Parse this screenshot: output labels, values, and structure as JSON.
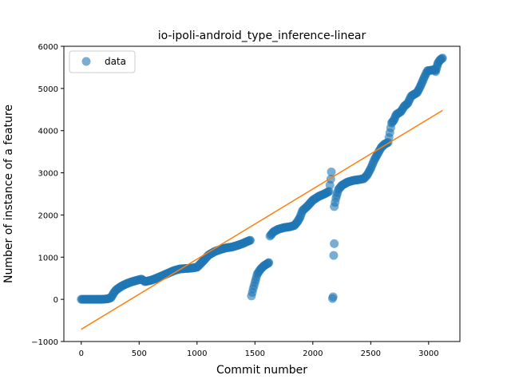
{
  "chart_data": {
    "type": "scatter",
    "title": "io-ipoli-android_type_inference-linear",
    "xlabel": "Commit number",
    "ylabel": "Number of instance of a feature",
    "xlim": [
      -150,
      3270
    ],
    "ylim": [
      -1000,
      6000
    ],
    "xticks": [
      0,
      500,
      1000,
      1500,
      2000,
      2500,
      3000
    ],
    "yticks": [
      -1000,
      0,
      1000,
      2000,
      3000,
      4000,
      5000,
      6000
    ],
    "xtick_labels": [
      "0",
      "500",
      "1000",
      "1500",
      "2000",
      "2500",
      "3000"
    ],
    "ytick_labels": [
      "−1000",
      "0",
      "1000",
      "2000",
      "3000",
      "4000",
      "5000",
      "6000"
    ],
    "grid": false,
    "legend": {
      "placement": "top-left",
      "entries": [
        "data"
      ]
    },
    "colors": {
      "data": "#1f77b4",
      "fit": "#ff7f0e"
    },
    "series": [
      {
        "name": "data",
        "kind": "scatter",
        "segments": [
          [
            [
              0,
              0
            ],
            [
              60,
              0
            ],
            [
              120,
              0
            ],
            [
              180,
              0
            ],
            [
              220,
              10
            ],
            [
              240,
              20
            ],
            [
              260,
              50
            ],
            [
              280,
              150
            ],
            [
              300,
              220
            ],
            [
              330,
              280
            ],
            [
              360,
              330
            ],
            [
              400,
              380
            ],
            [
              440,
              420
            ],
            [
              480,
              450
            ],
            [
              520,
              480
            ],
            [
              550,
              420
            ],
            [
              600,
              450
            ],
            [
              650,
              500
            ],
            [
              700,
              560
            ],
            [
              750,
              620
            ],
            [
              800,
              680
            ],
            [
              850,
              720
            ],
            [
              900,
              730
            ],
            [
              950,
              740
            ],
            [
              1000,
              760
            ],
            [
              1050,
              900
            ],
            [
              1100,
              1050
            ],
            [
              1150,
              1130
            ],
            [
              1200,
              1180
            ],
            [
              1250,
              1220
            ],
            [
              1300,
              1240
            ],
            [
              1350,
              1280
            ],
            [
              1400,
              1330
            ],
            [
              1440,
              1380
            ],
            [
              1460,
              1400
            ]
          ],
          [
            [
              1470,
              80
            ],
            [
              1485,
              250
            ],
            [
              1500,
              400
            ],
            [
              1520,
              600
            ],
            [
              1550,
              720
            ],
            [
              1580,
              800
            ],
            [
              1610,
              850
            ],
            [
              1620,
              870
            ]
          ],
          [
            [
              1630,
              1500
            ],
            [
              1660,
              1600
            ],
            [
              1700,
              1660
            ],
            [
              1750,
              1700
            ],
            [
              1800,
              1720
            ],
            [
              1840,
              1750
            ],
            [
              1870,
              1850
            ],
            [
              1890,
              1950
            ],
            [
              1910,
              2100
            ],
            [
              1950,
              2200
            ],
            [
              2000,
              2350
            ],
            [
              2050,
              2440
            ],
            [
              2100,
              2500
            ],
            [
              2140,
              2560
            ],
            [
              2155,
              2850
            ],
            [
              2160,
              3020
            ]
          ],
          [
            [
              2170,
              20
            ],
            [
              2175,
              60
            ],
            [
              2180,
              1040
            ],
            [
              2185,
              1320
            ]
          ],
          [
            [
              2185,
              2200
            ],
            [
              2200,
              2400
            ],
            [
              2220,
              2600
            ],
            [
              2250,
              2700
            ],
            [
              2300,
              2780
            ],
            [
              2350,
              2820
            ],
            [
              2400,
              2840
            ],
            [
              2440,
              2860
            ],
            [
              2470,
              2950
            ],
            [
              2500,
              3100
            ],
            [
              2530,
              3300
            ],
            [
              2560,
              3450
            ],
            [
              2590,
              3600
            ],
            [
              2620,
              3680
            ],
            [
              2650,
              3720
            ],
            [
              2680,
              4180
            ],
            [
              2700,
              4250
            ],
            [
              2720,
              4380
            ],
            [
              2760,
              4450
            ],
            [
              2790,
              4580
            ],
            [
              2820,
              4650
            ],
            [
              2850,
              4820
            ],
            [
              2880,
              4870
            ],
            [
              2900,
              4900
            ],
            [
              2920,
              5000
            ],
            [
              2940,
              5120
            ],
            [
              2960,
              5250
            ],
            [
              2990,
              5420
            ],
            [
              3020,
              5430
            ],
            [
              3050,
              5450
            ],
            [
              3060,
              5400
            ],
            [
              3070,
              5500
            ],
            [
              3080,
              5600
            ],
            [
              3100,
              5680
            ],
            [
              3120,
              5720
            ]
          ]
        ]
      },
      {
        "name": "",
        "kind": "line",
        "points": [
          [
            0,
            -710
          ],
          [
            3120,
            4480
          ]
        ]
      }
    ]
  }
}
